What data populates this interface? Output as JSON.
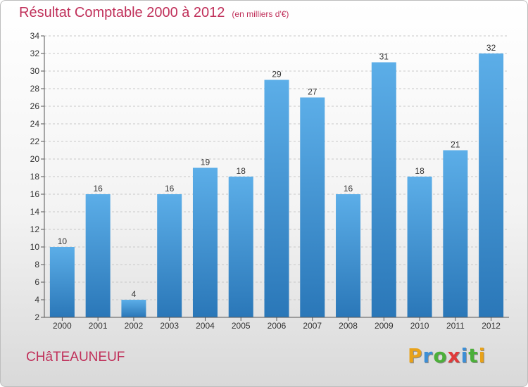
{
  "title": "Résultat Comptable 2000 à 2012",
  "subtitle": "(en milliers d'€)",
  "location": "CHâTEAUNEUF",
  "brand": {
    "letters": [
      "P",
      "r",
      "o",
      "x",
      "i",
      "t",
      "i"
    ],
    "colors": [
      "#e8a21a",
      "#3d8fd6",
      "#4caf3a",
      "#e03a3a",
      "#3d8fd6",
      "#4caf3a",
      "#e8a21a"
    ]
  },
  "colors": {
    "accent": "#c0305a",
    "bar_top": "#5caee8",
    "bar_bottom": "#2a77b8"
  },
  "chart_data": {
    "type": "bar",
    "title": "Résultat Comptable 2000 à 2012",
    "xlabel": "",
    "ylabel": "",
    "categories": [
      "2000",
      "2001",
      "2002",
      "2003",
      "2004",
      "2005",
      "2006",
      "2007",
      "2008",
      "2009",
      "2010",
      "2011",
      "2012"
    ],
    "values": [
      10,
      16,
      4,
      16,
      19,
      18,
      29,
      27,
      16,
      31,
      18,
      21,
      32
    ],
    "ylim": [
      2,
      34
    ],
    "yticks": [
      2,
      4,
      6,
      8,
      10,
      12,
      14,
      16,
      18,
      20,
      22,
      24,
      26,
      28,
      30,
      32,
      34
    ],
    "grid": "horizontal-dashed",
    "legend": "none"
  }
}
